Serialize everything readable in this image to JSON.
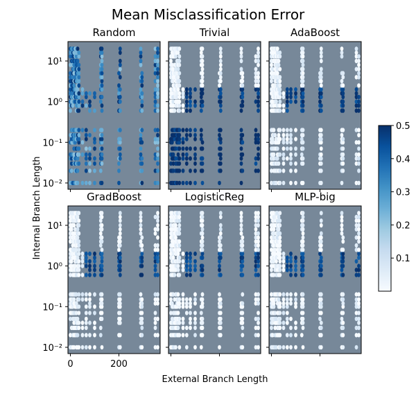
{
  "chart_data": {
    "type": "heatmap",
    "title": "Mean Misclassification Error",
    "xlabel": "External Branch Length",
    "ylabel": "Internal Branch Length",
    "x_scale": "linear",
    "y_scale": "log",
    "xlim": [
      -10,
      370
    ],
    "ylim": [
      0.007,
      30
    ],
    "x_ticks": [
      0,
      200
    ],
    "x_tick_labels": [
      "0",
      "200"
    ],
    "y_ticks": [
      0.01,
      0.1,
      1,
      10
    ],
    "y_tick_labels": [
      "10⁻²",
      "10⁻¹",
      "10⁰",
      "10¹"
    ],
    "panel_background": "#778899",
    "colormap": "Blues",
    "color_range": [
      0,
      0.5
    ],
    "colorbar_ticks": [
      0.1,
      0.2,
      0.3,
      0.4,
      0.5
    ],
    "colorbar_tick_labels": [
      "0.1",
      "0.2",
      "0.3",
      "0.4",
      "0.5"
    ],
    "x_columns": [
      0,
      5,
      10,
      15,
      20,
      25,
      30,
      35,
      50,
      65,
      80,
      100,
      125,
      130,
      200,
      205,
      290,
      295,
      350,
      360
    ],
    "y_levels_high": [
      0.6,
      0.8,
      1,
      1.3,
      1.6,
      2,
      2.5,
      3.2,
      4,
      5,
      6.3,
      8,
      10,
      13,
      16,
      20
    ],
    "y_levels_low": [
      0.01,
      0.02,
      0.03,
      0.04,
      0.05,
      0.07,
      0.1,
      0.12,
      0.15,
      0.2
    ],
    "panels": [
      {
        "name": "Random",
        "error_high": 0.42,
        "error_low": 0.47,
        "left_column_error": 0.18,
        "mid_column_error": 0.38
      },
      {
        "name": "Trivial",
        "error_high": 0.02,
        "error_low": 0.5,
        "left_column_error": 0.02,
        "mid_column_error": 0.48
      },
      {
        "name": "AdaBoost",
        "error_high": 0.04,
        "error_low": 0.04,
        "left_column_error": 0.01,
        "mid_column_error": 0.48
      },
      {
        "name": "GradBoost",
        "error_high": 0.03,
        "error_low": 0.03,
        "left_column_error": 0.0,
        "mid_column_error": 0.45
      },
      {
        "name": "LogisticReg",
        "error_high": 0.03,
        "error_low": 0.02,
        "left_column_error": 0.0,
        "mid_column_error": 0.45
      },
      {
        "name": "MLP-big",
        "error_high": 0.03,
        "error_low": 0.03,
        "left_column_error": 0.0,
        "mid_column_error": 0.45
      }
    ]
  }
}
